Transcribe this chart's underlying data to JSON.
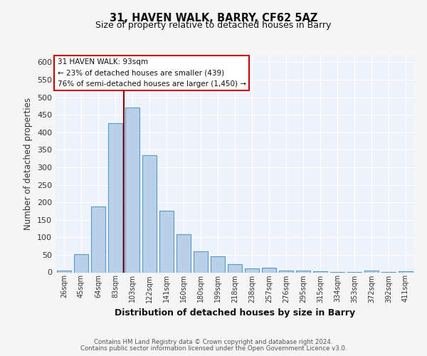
{
  "title": "31, HAVEN WALK, BARRY, CF62 5AZ",
  "subtitle": "Size of property relative to detached houses in Barry",
  "xlabel": "Distribution of detached houses by size in Barry",
  "ylabel": "Number of detached properties",
  "footnote1": "Contains HM Land Registry data © Crown copyright and database right 2024.",
  "footnote2": "Contains public sector information licensed under the Open Government Licence v3.0.",
  "categories": [
    "26sqm",
    "45sqm",
    "64sqm",
    "83sqm",
    "103sqm",
    "122sqm",
    "141sqm",
    "160sqm",
    "180sqm",
    "199sqm",
    "218sqm",
    "238sqm",
    "257sqm",
    "276sqm",
    "295sqm",
    "315sqm",
    "334sqm",
    "353sqm",
    "372sqm",
    "392sqm",
    "411sqm"
  ],
  "values": [
    5,
    51,
    188,
    425,
    470,
    335,
    175,
    108,
    60,
    45,
    23,
    12,
    13,
    6,
    5,
    4,
    2,
    1,
    6,
    1,
    3
  ],
  "bar_color": "#b8d0e8",
  "bar_edge_color": "#5b9ac8",
  "background_color": "#eef2fb",
  "grid_color": "#ffffff",
  "vline_color": "#8b0000",
  "vline_x_index": 3.5,
  "annotation_text1": "31 HAVEN WALK: 93sqm",
  "annotation_text2": "← 23% of detached houses are smaller (439)",
  "annotation_text3": "76% of semi-detached houses are larger (1,450) →",
  "box_edge_color": "#cc0000",
  "ylim": [
    0,
    620
  ],
  "yticks": [
    0,
    50,
    100,
    150,
    200,
    250,
    300,
    350,
    400,
    450,
    500,
    550,
    600
  ]
}
